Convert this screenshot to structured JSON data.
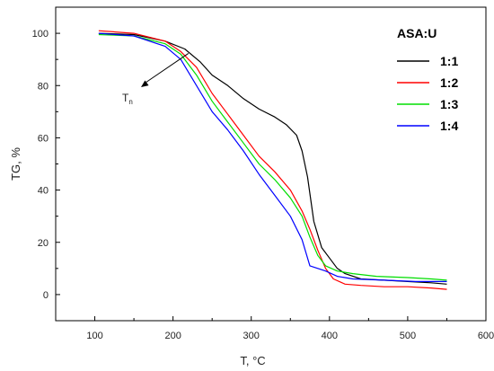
{
  "chart_data": {
    "type": "line",
    "xlabel": "T, °C",
    "ylabel": "TG, %",
    "xlim": [
      50,
      600
    ],
    "ylim": [
      -10,
      110
    ],
    "xticks": [
      100,
      200,
      300,
      400,
      500,
      600
    ],
    "yticks": [
      0,
      20,
      40,
      60,
      80,
      100
    ],
    "grid": false,
    "legend": {
      "title": "ASA:U",
      "placement": "top-right"
    },
    "annotation": {
      "text": "T",
      "subscript": "n",
      "points_to": [
        222,
        93
      ]
    },
    "series": [
      {
        "name": "1:1",
        "color": "#000000",
        "x": [
          105,
          150,
          190,
          215,
          235,
          250,
          270,
          290,
          310,
          330,
          345,
          358,
          365,
          372,
          380,
          390,
          400,
          410,
          420,
          440,
          470,
          500,
          530,
          550
        ],
        "y": [
          100,
          99.5,
          97,
          94,
          89,
          84,
          80,
          75,
          71,
          68,
          65,
          61,
          55,
          45,
          28,
          18,
          14,
          10,
          8,
          6,
          5.5,
          5,
          4.5,
          4
        ]
      },
      {
        "name": "1:2",
        "color": "#ff0000",
        "x": [
          105,
          150,
          190,
          210,
          230,
          250,
          270,
          290,
          310,
          330,
          350,
          365,
          375,
          385,
          395,
          405,
          420,
          440,
          470,
          500,
          530,
          550
        ],
        "y": [
          101,
          100,
          97,
          93,
          87,
          77,
          69,
          61,
          53,
          47,
          40,
          32,
          25,
          17,
          10,
          6,
          4,
          3.5,
          3,
          3,
          2.5,
          2
        ]
      },
      {
        "name": "1:3",
        "color": "#00dd00",
        "x": [
          105,
          150,
          190,
          210,
          230,
          250,
          270,
          290,
          310,
          330,
          350,
          365,
          375,
          385,
          395,
          410,
          430,
          460,
          500,
          530,
          550
        ],
        "y": [
          99.5,
          99,
          96,
          92,
          84,
          74,
          66,
          58,
          50,
          44,
          37,
          30,
          22,
          15,
          11,
          9,
          8,
          7,
          6.5,
          6,
          5.5
        ]
      },
      {
        "name": "1:4",
        "color": "#0000ff",
        "x": [
          105,
          150,
          190,
          210,
          230,
          250,
          270,
          290,
          310,
          330,
          350,
          365,
          375,
          385,
          395,
          410,
          430,
          470,
          510,
          550
        ],
        "y": [
          100,
          99,
          95,
          90,
          80,
          70,
          63,
          55,
          46,
          38,
          30,
          21,
          11,
          10,
          9,
          7,
          6,
          5.5,
          5,
          5
        ]
      }
    ]
  }
}
